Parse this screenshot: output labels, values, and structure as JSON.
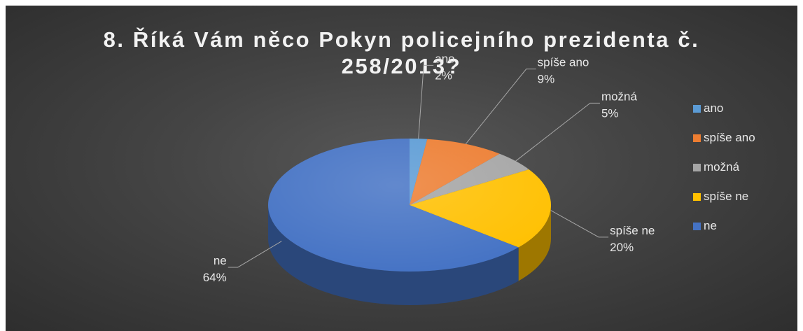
{
  "chart_data": {
    "type": "pie",
    "title": "8. Říká Vám něco Pokyn policejního prezidenta č.\n258/2013?",
    "slices": [
      {
        "name": "ano",
        "value": 2,
        "label": "2%",
        "color": "#5b9bd5"
      },
      {
        "name": "spíše ano",
        "value": 9,
        "label": "9%",
        "color": "#ed7d31"
      },
      {
        "name": "možná",
        "value": 5,
        "label": "5%",
        "color": "#a5a5a5"
      },
      {
        "name": "spíše ne",
        "value": 20,
        "label": "20%",
        "color": "#ffc000"
      },
      {
        "name": "ne",
        "value": 64,
        "label": "64%",
        "color": "#4472c4"
      }
    ],
    "legend_position": "right",
    "style": "3d-pie"
  }
}
